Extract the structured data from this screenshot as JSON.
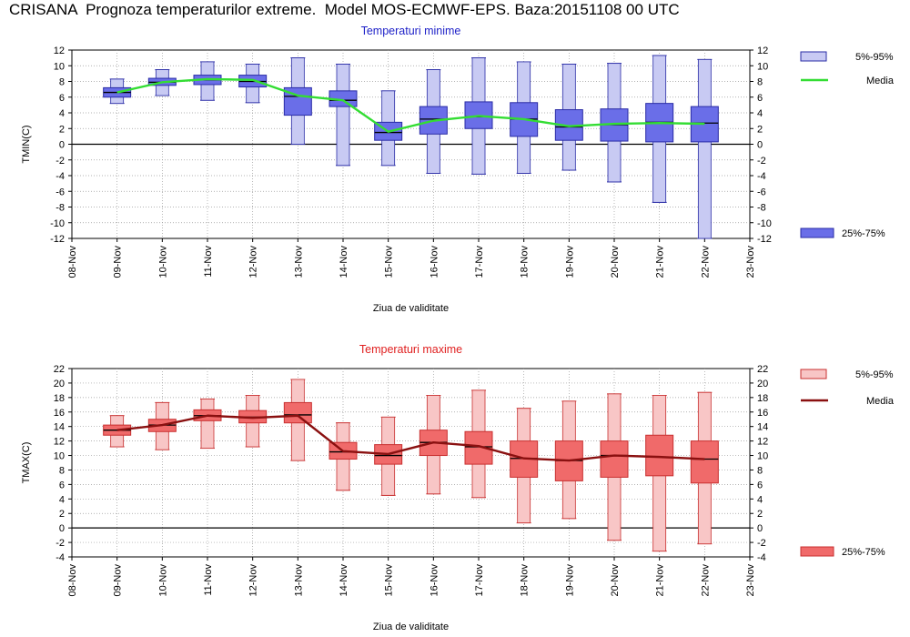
{
  "page": {
    "title": "CRISANA  Prognoza temperaturilor extreme.  Model MOS-ECMWF-EPS. Baza:20151108 00 UTC"
  },
  "chart_data": [
    {
      "type": "box",
      "title": "Temperaturi minime",
      "ylabel": "TMIN(C)",
      "xlabel": "Ziua de validitate",
      "categories": [
        "08-Nov",
        "09-Nov",
        "10-Nov",
        "11-Nov",
        "12-Nov",
        "13-Nov",
        "14-Nov",
        "15-Nov",
        "16-Nov",
        "17-Nov",
        "18-Nov",
        "19-Nov",
        "20-Nov",
        "21-Nov",
        "22-Nov",
        "23-Nov"
      ],
      "ylim": [
        -12,
        12
      ],
      "yticks": [
        12,
        10,
        8,
        6,
        4,
        2,
        0,
        -2,
        -4,
        -6,
        -8,
        -10,
        -12
      ],
      "grid": true,
      "colors": {
        "title": "#1f22c8",
        "box_fill": "#6a6ee8",
        "box_edge": "#2a2ca6",
        "whisker_fill": "#c8caf3",
        "media": "#33dd33"
      },
      "legend": {
        "range_label": "5%-95%",
        "media_label": "Media",
        "iqr_label": "25%-75%"
      },
      "boxes": [
        {
          "date": "09-Nov",
          "p5": 5.2,
          "p25": 6.0,
          "median": 6.6,
          "p75": 7.2,
          "p95": 8.3
        },
        {
          "date": "10-Nov",
          "p5": 6.2,
          "p25": 7.5,
          "median": 7.9,
          "p75": 8.4,
          "p95": 9.5
        },
        {
          "date": "11-Nov",
          "p5": 5.6,
          "p25": 7.6,
          "median": 8.2,
          "p75": 8.8,
          "p95": 10.5
        },
        {
          "date": "12-Nov",
          "p5": 5.3,
          "p25": 7.3,
          "median": 8.0,
          "p75": 8.8,
          "p95": 10.2
        },
        {
          "date": "13-Nov",
          "p5": 0.0,
          "p25": 3.7,
          "median": 6.1,
          "p75": 7.2,
          "p95": 11.0
        },
        {
          "date": "14-Nov",
          "p5": -2.7,
          "p25": 4.8,
          "median": 5.6,
          "p75": 6.8,
          "p95": 10.2
        },
        {
          "date": "15-Nov",
          "p5": -2.7,
          "p25": 0.5,
          "median": 1.5,
          "p75": 2.8,
          "p95": 6.8
        },
        {
          "date": "16-Nov",
          "p5": -3.7,
          "p25": 1.3,
          "median": 3.2,
          "p75": 4.8,
          "p95": 9.5
        },
        {
          "date": "17-Nov",
          "p5": -3.8,
          "p25": 2.0,
          "median": 3.5,
          "p75": 5.4,
          "p95": 11.0
        },
        {
          "date": "18-Nov",
          "p5": -3.7,
          "p25": 1.0,
          "median": 3.2,
          "p75": 5.3,
          "p95": 10.5
        },
        {
          "date": "19-Nov",
          "p5": -3.3,
          "p25": 0.5,
          "median": 2.2,
          "p75": 4.4,
          "p95": 10.2
        },
        {
          "date": "20-Nov",
          "p5": -4.8,
          "p25": 0.4,
          "median": 2.5,
          "p75": 4.5,
          "p95": 10.3
        },
        {
          "date": "21-Nov",
          "p5": -7.4,
          "p25": 0.3,
          "median": 2.8,
          "p75": 5.2,
          "p95": 11.3
        },
        {
          "date": "22-Nov",
          "p5": -12.0,
          "p25": 0.3,
          "median": 2.7,
          "p75": 4.8,
          "p95": 10.8
        }
      ],
      "media": [
        6.6,
        7.9,
        8.3,
        8.2,
        6.2,
        5.6,
        1.6,
        3.0,
        3.6,
        3.2,
        2.3,
        2.6,
        2.7,
        2.6
      ]
    },
    {
      "type": "box",
      "title": "Temperaturi maxime",
      "ylabel": "TMAX(C)",
      "xlabel": "Ziua de validitate",
      "categories": [
        "08-Nov",
        "09-Nov",
        "10-Nov",
        "11-Nov",
        "12-Nov",
        "13-Nov",
        "14-Nov",
        "15-Nov",
        "16-Nov",
        "17-Nov",
        "18-Nov",
        "19-Nov",
        "20-Nov",
        "21-Nov",
        "22-Nov",
        "23-Nov"
      ],
      "ylim": [
        -4,
        22
      ],
      "yticks": [
        22,
        20,
        18,
        16,
        14,
        12,
        10,
        8,
        6,
        4,
        2,
        0,
        -2,
        -4
      ],
      "grid": true,
      "colors": {
        "title": "#e02020",
        "box_fill": "#f06a6a",
        "box_edge": "#c83030",
        "whisker_fill": "#f8c6c6",
        "media": "#8a1010"
      },
      "legend": {
        "range_label": "5%-95%",
        "media_label": "Media",
        "iqr_label": "25%-75%"
      },
      "boxes": [
        {
          "date": "09-Nov",
          "p5": 11.2,
          "p25": 12.8,
          "median": 13.5,
          "p75": 14.2,
          "p95": 15.5
        },
        {
          "date": "10-Nov",
          "p5": 10.8,
          "p25": 13.3,
          "median": 14.2,
          "p75": 15.0,
          "p95": 17.3
        },
        {
          "date": "11-Nov",
          "p5": 11.0,
          "p25": 14.8,
          "median": 15.5,
          "p75": 16.3,
          "p95": 17.8
        },
        {
          "date": "12-Nov",
          "p5": 11.2,
          "p25": 14.5,
          "median": 15.3,
          "p75": 16.2,
          "p95": 18.3
        },
        {
          "date": "13-Nov",
          "p5": 9.3,
          "p25": 14.5,
          "median": 15.6,
          "p75": 17.3,
          "p95": 20.5
        },
        {
          "date": "14-Nov",
          "p5": 5.2,
          "p25": 9.5,
          "median": 10.5,
          "p75": 11.8,
          "p95": 14.5
        },
        {
          "date": "15-Nov",
          "p5": 4.5,
          "p25": 8.8,
          "median": 10.0,
          "p75": 11.5,
          "p95": 15.3
        },
        {
          "date": "16-Nov",
          "p5": 4.7,
          "p25": 10.0,
          "median": 11.8,
          "p75": 13.5,
          "p95": 18.3
        },
        {
          "date": "17-Nov",
          "p5": 4.2,
          "p25": 8.8,
          "median": 11.2,
          "p75": 13.3,
          "p95": 19.0
        },
        {
          "date": "18-Nov",
          "p5": 0.7,
          "p25": 7.0,
          "median": 9.6,
          "p75": 12.0,
          "p95": 16.5
        },
        {
          "date": "19-Nov",
          "p5": 1.3,
          "p25": 6.5,
          "median": 9.3,
          "p75": 12.0,
          "p95": 17.5
        },
        {
          "date": "20-Nov",
          "p5": -1.7,
          "p25": 7.0,
          "median": 10.0,
          "p75": 12.0,
          "p95": 18.5
        },
        {
          "date": "21-Nov",
          "p5": -3.2,
          "p25": 7.2,
          "median": 9.8,
          "p75": 12.8,
          "p95": 18.3
        },
        {
          "date": "22-Nov",
          "p5": -2.2,
          "p25": 6.2,
          "median": 9.5,
          "p75": 12.0,
          "p95": 18.7
        }
      ],
      "media": [
        13.5,
        14.2,
        15.5,
        15.2,
        15.5,
        10.6,
        10.2,
        11.8,
        11.3,
        9.6,
        9.3,
        10.0,
        9.8,
        9.5
      ]
    }
  ]
}
